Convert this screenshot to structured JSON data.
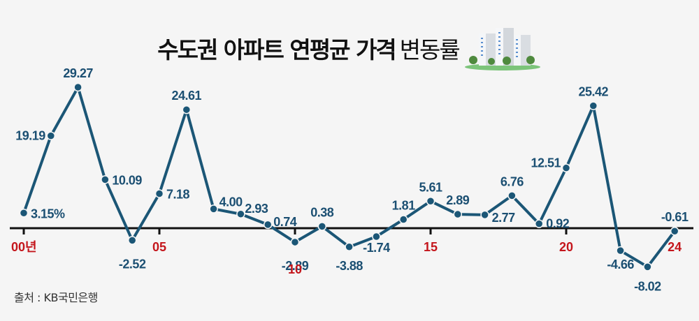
{
  "header": {
    "title_bold": "수도권 아파트 연평균 가격",
    "title_light": "변동률",
    "illustration": "apartment-buildings-icon"
  },
  "footer": {
    "source": "출처 : KB국민은행"
  },
  "colors": {
    "line": "#1b5676",
    "value_label": "#1b4f72",
    "x_label": "#c4161c",
    "axis": "#111111",
    "background": "#f5f5f5"
  },
  "chart_data": {
    "type": "line",
    "title": "수도권 아파트 연평균 가격 변동률",
    "xlabel": "",
    "ylabel": "",
    "unit": "%",
    "x": [
      2000,
      2001,
      2002,
      2003,
      2004,
      2005,
      2006,
      2007,
      2008,
      2009,
      2010,
      2011,
      2012,
      2013,
      2014,
      2015,
      2016,
      2017,
      2018,
      2019,
      2020,
      2021,
      2022,
      2023,
      2024
    ],
    "series": [
      {
        "name": "연평균 가격 변동률",
        "values": [
          3.15,
          19.19,
          29.27,
          10.09,
          -2.52,
          7.18,
          24.61,
          4.0,
          2.93,
          0.74,
          -2.89,
          0.38,
          -3.88,
          -1.74,
          1.81,
          5.61,
          2.89,
          2.77,
          6.76,
          0.92,
          12.51,
          25.42,
          -4.66,
          -8.02,
          -0.61
        ]
      }
    ],
    "point_labels": [
      "3.15%",
      "19.19",
      "29.27",
      "10.09",
      "-2.52",
      "7.18",
      "24.61",
      "4.00",
      "2.93",
      "0.74",
      "-2.89",
      "0.38",
      "-3.88",
      "-1.74",
      "1.81",
      "5.61",
      "2.89",
      "2.77",
      "6.76",
      "0.92",
      "12.51",
      "25.42",
      "-4.66",
      "-8.02",
      "-0.61"
    ],
    "tick_labels": [
      {
        "year": 2000,
        "label": "00년"
      },
      {
        "year": 2005,
        "label": "05"
      },
      {
        "year": 2010,
        "label": "10"
      },
      {
        "year": 2015,
        "label": "15"
      },
      {
        "year": 2020,
        "label": "20"
      },
      {
        "year": 2024,
        "label": "24"
      }
    ],
    "ylim": [
      -9,
      31
    ],
    "grid": false,
    "legend": "none"
  }
}
